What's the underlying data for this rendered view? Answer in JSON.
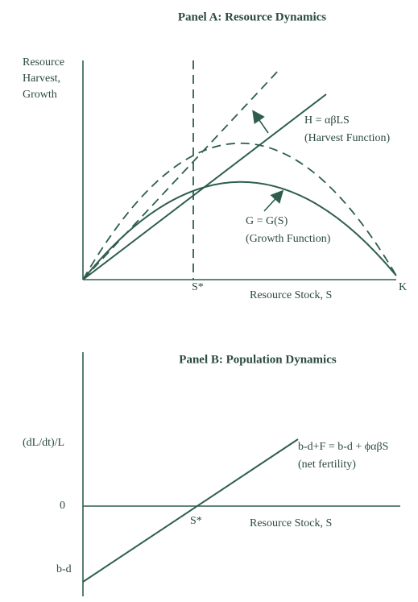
{
  "panel_a": {
    "title": "Panel A: Resource Dynamics",
    "y_axis_label": [
      "Resource",
      "Harvest,",
      "Growth"
    ],
    "x_axis_label": "Resource Stock, S",
    "s_star": "S*",
    "k": "K",
    "harvest_label": "H = αβLS",
    "harvest_note": "(Harvest Function)",
    "growth_label": "G = G(S)",
    "growth_note": "(Growth Function)"
  },
  "panel_b": {
    "title": "Panel B: Population Dynamics",
    "y_axis_label": "(dL/dt)/L",
    "zero": "0",
    "intercept": "b-d",
    "x_axis_label": "Resource Stock, S",
    "s_star": "S*",
    "line_label": "b-d+F = b-d + ϕαβS",
    "line_note": "(net fertility)"
  }
}
